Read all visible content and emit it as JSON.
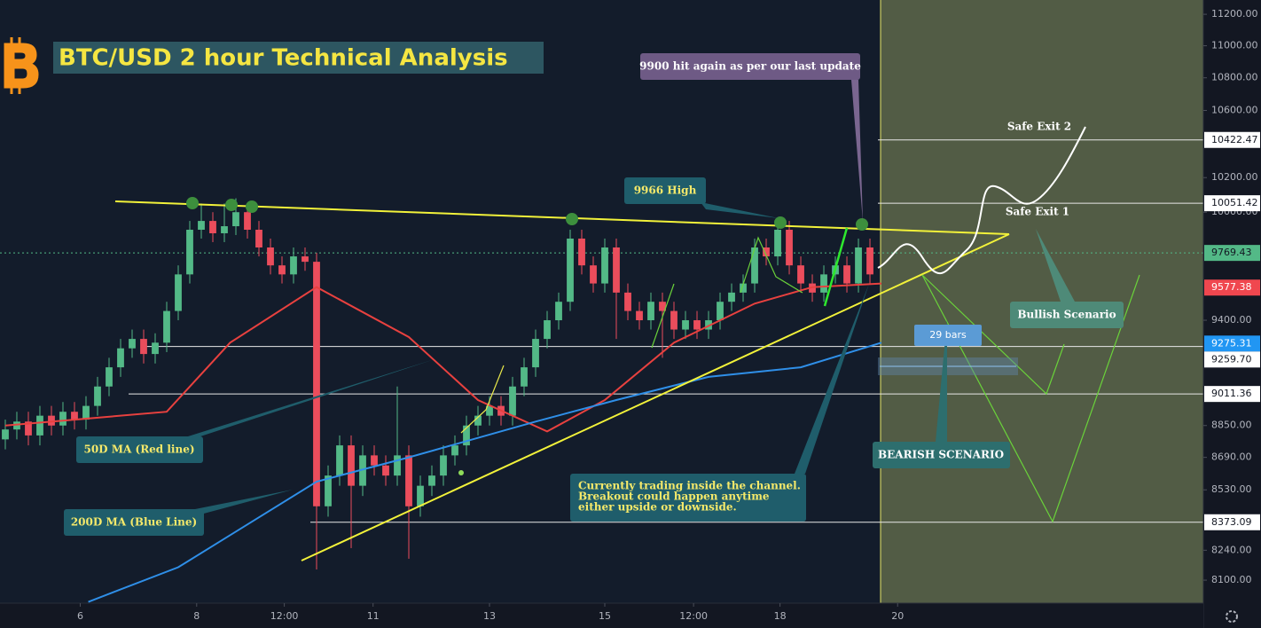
{
  "chart_data": {
    "type": "candlestick",
    "title": "BTC/USD 2 hour Technical Analysis",
    "log_scale": true,
    "up_color": "#53b987",
    "down_color": "#eb4d5c",
    "xlim": [
      -0.46,
      103.92
    ],
    "ylim": [
      7994,
      11292
    ],
    "xticks": [
      {
        "value": 6.5,
        "label": "6"
      },
      {
        "value": 16.6,
        "label": "8"
      },
      {
        "value": 24.2,
        "label": "12:00"
      },
      {
        "value": 31.9,
        "label": "11"
      },
      {
        "value": 42,
        "label": "13"
      },
      {
        "value": 52,
        "label": "15"
      },
      {
        "value": 59.7,
        "label": "12:00"
      },
      {
        "value": 67.2,
        "label": "18"
      },
      {
        "value": 77.4,
        "label": "20"
      }
    ],
    "yticks": [
      {
        "value": 11200,
        "label": "11200.00"
      },
      {
        "value": 11000,
        "label": "11000.00"
      },
      {
        "value": 10800,
        "label": "10800.00"
      },
      {
        "value": 10600,
        "label": "10600.00"
      },
      {
        "value": 10200,
        "label": "10200.00"
      },
      {
        "value": 10000,
        "label": "10000.00"
      },
      {
        "value": 9400,
        "label": "9400.00"
      },
      {
        "value": 8850,
        "label": "8850.00"
      },
      {
        "value": 8690,
        "label": "8690.00"
      },
      {
        "value": 8530,
        "label": "8530.00"
      },
      {
        "value": 8240,
        "label": "8240.00"
      },
      {
        "value": 8100,
        "label": "8100.00"
      }
    ],
    "open": [
      8780,
      8830,
      8870,
      8800,
      8900,
      8850,
      8920,
      8880,
      8950,
      9050,
      9150,
      9250,
      9300,
      9220,
      9280,
      9450,
      9650,
      9900,
      9950,
      9880,
      9920,
      10000,
      9900,
      9800,
      9700,
      9650,
      9750,
      9720,
      8450,
      8600,
      8750,
      8550,
      8700,
      8650,
      8600,
      8700,
      8450,
      8550,
      8600,
      8700,
      8750,
      8850,
      8900,
      8950,
      8900,
      9050,
      9150,
      9300,
      9400,
      9500,
      9850,
      9700,
      9600,
      9800,
      9550,
      9450,
      9400,
      9500,
      9450,
      9350,
      9400,
      9350,
      9400,
      9500,
      9550,
      9600,
      9800,
      9750,
      9900,
      9700,
      9600,
      9550,
      9650,
      9700,
      9600,
      9800
    ],
    "high": [
      8880,
      8920,
      8920,
      8950,
      8950,
      8970,
      8970,
      9000,
      9100,
      9200,
      9300,
      9350,
      9350,
      9330,
      9500,
      9700,
      9950,
      10050,
      10000,
      10050,
      10080,
      10050,
      9950,
      9850,
      9750,
      9800,
      9800,
      9770,
      8650,
      8800,
      8800,
      8750,
      8750,
      8700,
      9050,
      8750,
      8600,
      8650,
      8750,
      8800,
      8900,
      8950,
      9000,
      9000,
      9100,
      9200,
      9350,
      9450,
      9550,
      9900,
      9900,
      9750,
      9850,
      9850,
      9600,
      9500,
      9550,
      9550,
      9500,
      9450,
      9450,
      9450,
      9550,
      9600,
      9650,
      9850,
      9850,
      9950,
      9950,
      9750,
      9650,
      9700,
      9750,
      9750,
      9850,
      9850
    ],
    "low": [
      8730,
      8780,
      8750,
      8750,
      8800,
      8800,
      8830,
      8830,
      8900,
      9000,
      9100,
      9200,
      9170,
      9170,
      9230,
      9400,
      9600,
      9850,
      9830,
      9830,
      9870,
      9850,
      9750,
      9650,
      9600,
      9600,
      9670,
      8150,
      8400,
      8550,
      8250,
      8500,
      8600,
      8550,
      8550,
      8200,
      8400,
      8500,
      8550,
      8650,
      8700,
      8800,
      8850,
      8850,
      8850,
      9000,
      9100,
      9250,
      9350,
      9450,
      9650,
      9550,
      9550,
      9300,
      9400,
      9350,
      9350,
      9200,
      9300,
      9300,
      9300,
      9300,
      9350,
      9450,
      9500,
      9550,
      9700,
      9700,
      9650,
      9550,
      9500,
      9500,
      9600,
      9550,
      9550,
      9600
    ],
    "close": [
      8830,
      8870,
      8800,
      8900,
      8850,
      8920,
      8880,
      8950,
      9050,
      9150,
      9250,
      9300,
      9220,
      9280,
      9450,
      9650,
      9900,
      9950,
      9880,
      9920,
      10000,
      9900,
      9800,
      9700,
      9650,
      9750,
      9720,
      8450,
      8600,
      8750,
      8550,
      8700,
      8650,
      8600,
      8700,
      8450,
      8550,
      8600,
      8700,
      8750,
      8850,
      8900,
      8950,
      8900,
      9050,
      9150,
      9300,
      9400,
      9500,
      9850,
      9700,
      9600,
      9800,
      9550,
      9450,
      9400,
      9500,
      9450,
      9350,
      9400,
      9350,
      9400,
      9500,
      9550,
      9600,
      9800,
      9750,
      9900,
      9700,
      9600,
      9550,
      9650,
      9700,
      9600,
      9800,
      9650
    ],
    "series": [
      {
        "name": "50D MA (Red line)",
        "color": "#e8413f",
        "x": [
          0,
          14,
          19.5,
          27,
          35,
          41,
          47,
          52,
          58,
          65,
          70,
          76
        ],
        "values": [
          8850,
          8920,
          9280,
          9580,
          9310,
          8980,
          8820,
          8980,
          9280,
          9490,
          9580,
          9600
        ]
      },
      {
        "name": "200D MA (Blue Line)",
        "color": "#2f8fe8",
        "x": [
          7.2,
          15,
          27,
          35,
          46,
          53,
          61,
          69,
          76
        ],
        "values": [
          8000,
          8160,
          8570,
          8690,
          8870,
          8980,
          9100,
          9150,
          9280
        ]
      }
    ],
    "levels": {
      "prices": [
        10422.47,
        10051.42,
        9769.43,
        9577.38,
        9275.31,
        {
          "value": 9259.7,
          "label": "9259.70"
        },
        9011.36,
        8373.09
      ],
      "tag_colors": [
        "#ffffff",
        "#ffffff",
        "#53b987",
        "#f0474f",
        "#2196f3",
        "#ffffff",
        "#ffffff",
        "#ffffff"
      ],
      "text_colors": [
        "#131722",
        "#131722",
        "#131722",
        "#ffffff",
        "#ffffff",
        "#131722",
        "#131722",
        "#131722"
      ],
      "line_styles": [
        "solid",
        "solid",
        "dotted",
        "none",
        "none",
        "solid",
        "solid",
        "solid"
      ]
    },
    "annotations": [
      "9900 hit again as per our last update",
      "9966 High",
      "Safe Exit 2",
      "Safe Exit 1",
      "Bullish Scenario",
      "29 bars",
      "BEARISH SCENARIO",
      "50D MA (Red line)",
      "200D MA (Blue Line)",
      [
        "Currently trading inside the channel.",
        "Breakout could happen anytime",
        "either upside or downside."
      ]
    ]
  }
}
